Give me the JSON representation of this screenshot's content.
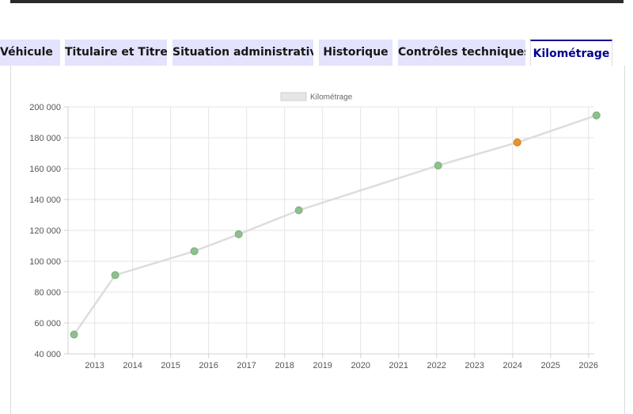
{
  "tabs": [
    {
      "label": "Véhicule",
      "active": false
    },
    {
      "label": "Titulaire et Titre",
      "active": false
    },
    {
      "label": "Situation administrative",
      "active": false
    },
    {
      "label": "Historique",
      "active": false
    },
    {
      "label": "Contrôles techniques",
      "active": false
    },
    {
      "label": "Kilométrage",
      "active": true
    }
  ],
  "colors": {
    "tab_bg": "#e3e3fd",
    "tab_active_text": "#000091",
    "line": "#dddddd",
    "point": "#8fbf8f",
    "point_highlight": "#e8952b"
  },
  "chart_data": {
    "type": "line",
    "legend": {
      "label": "Kilométrage",
      "position": "top"
    },
    "series": [
      {
        "name": "Kilométrage",
        "points": [
          {
            "x": "2012-06",
            "y": 52500
          },
          {
            "x": "2013-07",
            "y": 91000
          },
          {
            "x": "2015-08",
            "y": 106500
          },
          {
            "x": "2016-10",
            "y": 117500
          },
          {
            "x": "2018-05",
            "y": 133000
          },
          {
            "x": "2022-01",
            "y": 162000
          },
          {
            "x": "2024-02",
            "y": 177000,
            "highlight": true
          },
          {
            "x": "2026-03",
            "y": 194500
          }
        ]
      }
    ],
    "y_ticks": [
      "200 000",
      "180 000",
      "160 000",
      "140 000",
      "120 000",
      "100 000",
      "80 000",
      "60 000",
      "40 000"
    ],
    "x_ticks": [
      "2013",
      "2014",
      "2015",
      "2016",
      "2017",
      "2018",
      "2019",
      "2020",
      "2021",
      "2022",
      "2023",
      "2024",
      "2025",
      "2026"
    ],
    "ylim": [
      40000,
      200000
    ],
    "grid": true
  }
}
